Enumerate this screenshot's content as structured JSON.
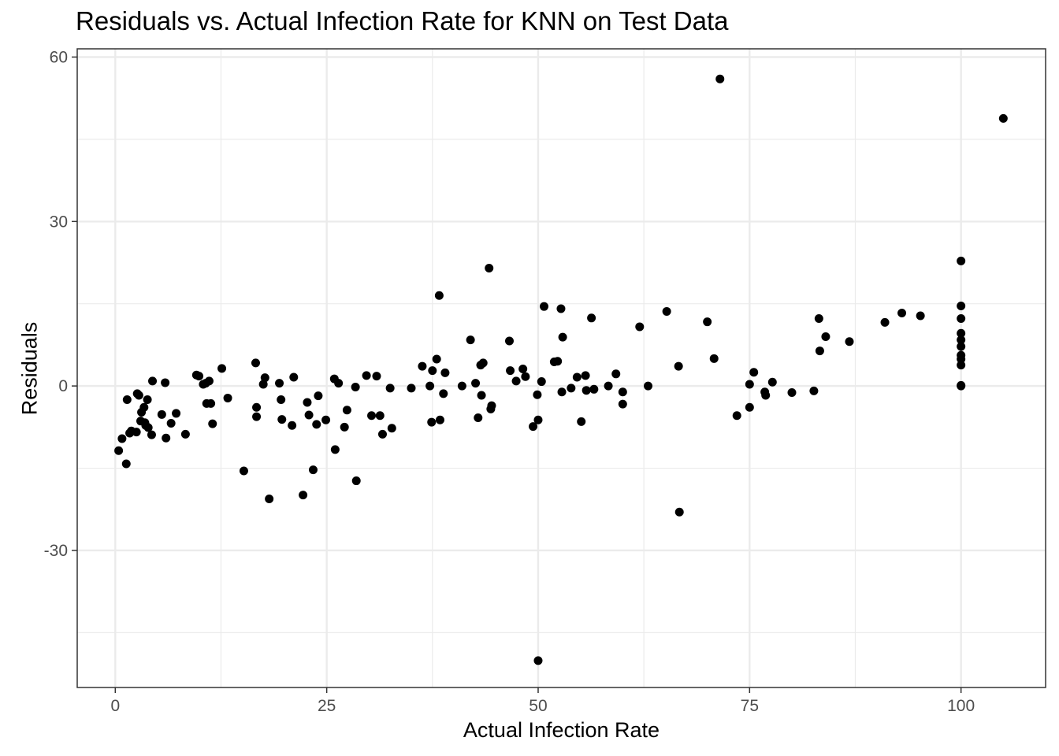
{
  "chart_data": {
    "type": "scatter",
    "title": "Residuals vs. Actual Infection Rate for KNN on Test Data",
    "xlabel": "Actual Infection Rate",
    "ylabel": "Residuals",
    "xlim": [
      -4.5,
      110
    ],
    "ylim": [
      -55,
      61.5
    ],
    "x_ticks": [
      0,
      25,
      50,
      75,
      100
    ],
    "y_ticks": [
      -30,
      0,
      30,
      60
    ],
    "x_minor": [
      12.5,
      37.5,
      62.5,
      87.5
    ],
    "y_minor": [
      -45,
      -15,
      15,
      45
    ],
    "grid": true,
    "legend": "none",
    "point_color": "#000000",
    "points": [
      [
        0.4,
        -11.8
      ],
      [
        0.8,
        -9.6
      ],
      [
        1.3,
        -14.2
      ],
      [
        1.4,
        -2.5
      ],
      [
        1.7,
        -8.6
      ],
      [
        1.9,
        -8.2
      ],
      [
        2.5,
        -8.4
      ],
      [
        2.6,
        -1.4
      ],
      [
        2.8,
        -1.7
      ],
      [
        3.0,
        -6.4
      ],
      [
        3.1,
        -4.8
      ],
      [
        3.4,
        -3.9
      ],
      [
        3.5,
        -6.7
      ],
      [
        3.6,
        -7.2
      ],
      [
        3.8,
        -2.5
      ],
      [
        3.9,
        -7.6
      ],
      [
        4.3,
        -8.9
      ],
      [
        4.4,
        0.9
      ],
      [
        5.5,
        -5.2
      ],
      [
        5.9,
        0.6
      ],
      [
        6.0,
        -9.5
      ],
      [
        6.6,
        -6.8
      ],
      [
        7.2,
        -5.0
      ],
      [
        8.3,
        -8.8
      ],
      [
        9.6,
        2.0
      ],
      [
        9.9,
        1.8
      ],
      [
        10.4,
        0.3
      ],
      [
        10.7,
        0.5
      ],
      [
        10.8,
        -3.2
      ],
      [
        11.1,
        0.9
      ],
      [
        11.3,
        -3.2
      ],
      [
        11.5,
        -6.9
      ],
      [
        12.6,
        3.2
      ],
      [
        13.3,
        -2.2
      ],
      [
        15.2,
        -15.5
      ],
      [
        16.6,
        4.2
      ],
      [
        16.7,
        -3.9
      ],
      [
        16.7,
        -5.6
      ],
      [
        17.5,
        0.3
      ],
      [
        17.7,
        1.5
      ],
      [
        18.2,
        -20.6
      ],
      [
        19.4,
        0.5
      ],
      [
        19.6,
        -2.5
      ],
      [
        19.7,
        -6.1
      ],
      [
        20.9,
        -7.2
      ],
      [
        21.1,
        1.6
      ],
      [
        22.2,
        -19.9
      ],
      [
        22.7,
        -3.0
      ],
      [
        22.9,
        -5.3
      ],
      [
        23.4,
        -15.3
      ],
      [
        23.8,
        -7.0
      ],
      [
        24.0,
        -1.8
      ],
      [
        24.9,
        -6.2
      ],
      [
        25.9,
        1.3
      ],
      [
        26.0,
        -11.6
      ],
      [
        26.4,
        0.5
      ],
      [
        27.1,
        -7.5
      ],
      [
        27.4,
        -4.4
      ],
      [
        28.4,
        -0.2
      ],
      [
        28.5,
        -17.3
      ],
      [
        29.7,
        1.9
      ],
      [
        30.3,
        -5.4
      ],
      [
        30.9,
        1.8
      ],
      [
        31.3,
        -5.4
      ],
      [
        31.6,
        -8.8
      ],
      [
        32.5,
        -0.4
      ],
      [
        32.7,
        -7.7
      ],
      [
        35.0,
        -0.4
      ],
      [
        36.3,
        3.6
      ],
      [
        37.2,
        0.0
      ],
      [
        37.4,
        -6.6
      ],
      [
        37.5,
        2.8
      ],
      [
        38.0,
        4.9
      ],
      [
        38.3,
        16.5
      ],
      [
        38.4,
        -6.2
      ],
      [
        38.8,
        -1.4
      ],
      [
        39.0,
        2.4
      ],
      [
        41.0,
        0.0
      ],
      [
        42.0,
        8.4
      ],
      [
        42.6,
        0.5
      ],
      [
        42.9,
        -5.8
      ],
      [
        43.2,
        3.8
      ],
      [
        43.3,
        -1.7
      ],
      [
        43.5,
        4.2
      ],
      [
        44.2,
        21.5
      ],
      [
        44.4,
        -4.2
      ],
      [
        44.5,
        -3.6
      ],
      [
        46.6,
        8.2
      ],
      [
        46.7,
        2.8
      ],
      [
        47.4,
        0.9
      ],
      [
        48.2,
        3.1
      ],
      [
        48.5,
        1.7
      ],
      [
        49.4,
        -7.4
      ],
      [
        49.9,
        -1.6
      ],
      [
        50.0,
        -6.2
      ],
      [
        50.0,
        -50.1
      ],
      [
        50.4,
        0.8
      ],
      [
        50.7,
        14.5
      ],
      [
        51.9,
        4.4
      ],
      [
        52.3,
        4.5
      ],
      [
        52.7,
        14.1
      ],
      [
        52.8,
        -1.1
      ],
      [
        52.9,
        8.9
      ],
      [
        53.9,
        -0.4
      ],
      [
        54.6,
        1.6
      ],
      [
        55.1,
        -6.5
      ],
      [
        55.6,
        1.9
      ],
      [
        55.7,
        -0.8
      ],
      [
        56.3,
        12.4
      ],
      [
        56.6,
        -0.6
      ],
      [
        58.3,
        0.0
      ],
      [
        59.2,
        2.2
      ],
      [
        60.0,
        -1.1
      ],
      [
        60.0,
        -3.3
      ],
      [
        62.0,
        10.8
      ],
      [
        63.0,
        0.0
      ],
      [
        65.2,
        13.6
      ],
      [
        66.6,
        3.6
      ],
      [
        66.7,
        -23.0
      ],
      [
        70.0,
        11.7
      ],
      [
        70.8,
        5.0
      ],
      [
        71.5,
        56.0
      ],
      [
        73.5,
        -5.4
      ],
      [
        75.0,
        -3.9
      ],
      [
        75.0,
        0.3
      ],
      [
        75.5,
        2.5
      ],
      [
        76.8,
        -1.1
      ],
      [
        76.9,
        -1.7
      ],
      [
        77.7,
        0.7
      ],
      [
        80.0,
        -1.2
      ],
      [
        82.6,
        -0.9
      ],
      [
        83.2,
        12.3
      ],
      [
        83.3,
        6.4
      ],
      [
        84.0,
        9.0
      ],
      [
        86.8,
        8.1
      ],
      [
        91.0,
        11.6
      ],
      [
        93.0,
        13.3
      ],
      [
        95.2,
        12.8
      ],
      [
        100.0,
        22.8
      ],
      [
        100.0,
        14.6
      ],
      [
        100.0,
        12.3
      ],
      [
        100.0,
        9.6
      ],
      [
        100.0,
        8.4
      ],
      [
        100.0,
        7.2
      ],
      [
        100.0,
        5.6
      ],
      [
        100.0,
        4.9
      ],
      [
        100.0,
        3.8
      ],
      [
        100.0,
        0.1
      ],
      [
        100.0,
        0.0
      ],
      [
        105.0,
        48.8
      ]
    ]
  }
}
